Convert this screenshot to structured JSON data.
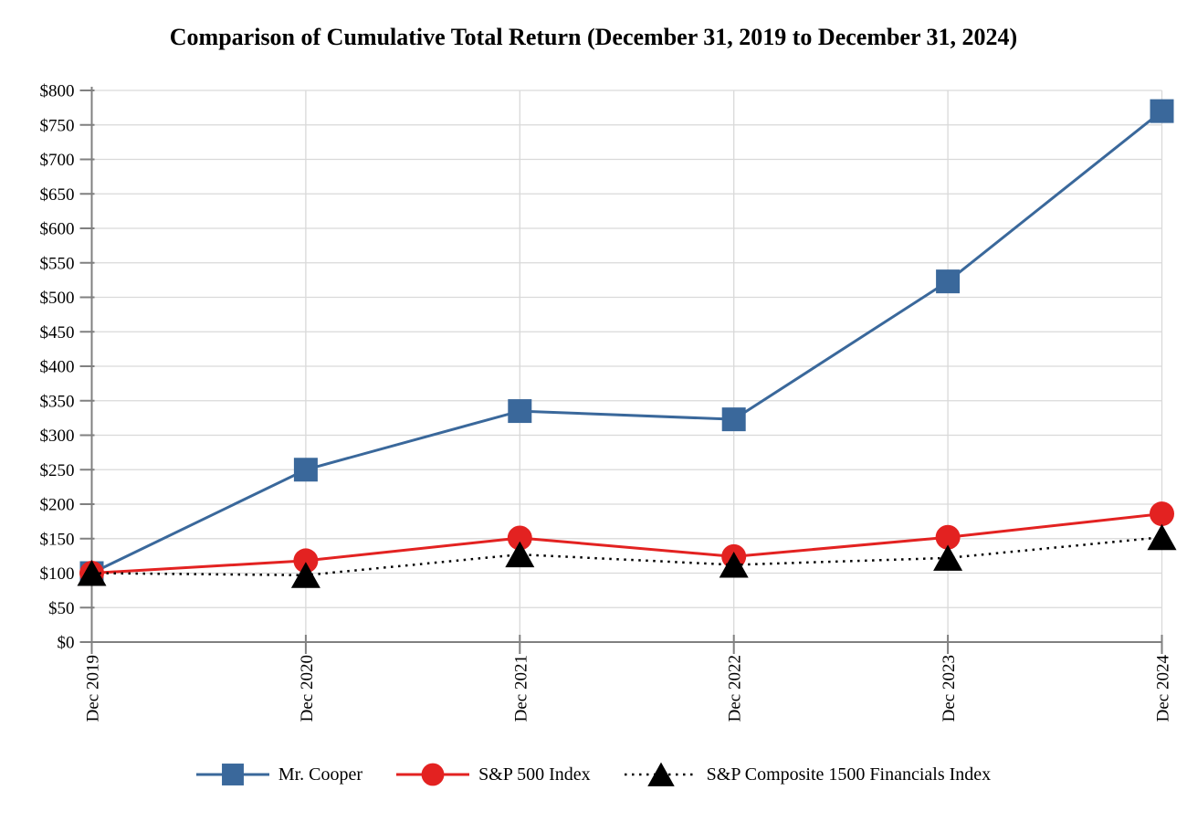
{
  "title": "Comparison of Cumulative Total Return (December 31, 2019 to December 31, 2024)",
  "chart_data": {
    "type": "line",
    "title": "Comparison of Cumulative Total Return (December 31, 2019 to December 31, 2024)",
    "categories": [
      "Dec 2019",
      "Dec 2020",
      "Dec 2021",
      "Dec 2022",
      "Dec 2023",
      "Dec 2024"
    ],
    "xlabel": "",
    "ylabel": "",
    "ylim": [
      0,
      800
    ],
    "y_ticks": [
      0,
      50,
      100,
      150,
      200,
      250,
      300,
      350,
      400,
      450,
      500,
      550,
      600,
      650,
      700,
      750,
      800
    ],
    "y_tick_labels": [
      "$0",
      "$50",
      "$100",
      "$150",
      "$200",
      "$250",
      "$300",
      "$350",
      "$400",
      "$450",
      "$500",
      "$550",
      "$600",
      "$650",
      "$700",
      "$750",
      "$800"
    ],
    "grid": "horizontal-every-50-and-vertical-at-each-category",
    "legend_position": "bottom-center",
    "series": [
      {
        "name": "Mr. Cooper",
        "marker": "square",
        "line_style": "solid",
        "color": "#3A689B",
        "values": [
          100,
          250,
          335,
          323,
          523,
          770
        ]
      },
      {
        "name": "S&P 500 Index",
        "marker": "circle",
        "line_style": "solid",
        "color": "#E32221",
        "values": [
          100,
          118,
          151,
          124,
          152,
          186
        ]
      },
      {
        "name": "S&P Composite 1500 Financials Index",
        "marker": "triangle",
        "line_style": "dotted",
        "color": "#000000",
        "values": [
          100,
          97,
          127,
          112,
          122,
          152
        ]
      }
    ],
    "colors": {
      "axis": "#808080",
      "gridline": "#D9D9D9",
      "background": "#FFFFFF",
      "text": "#000000"
    }
  }
}
